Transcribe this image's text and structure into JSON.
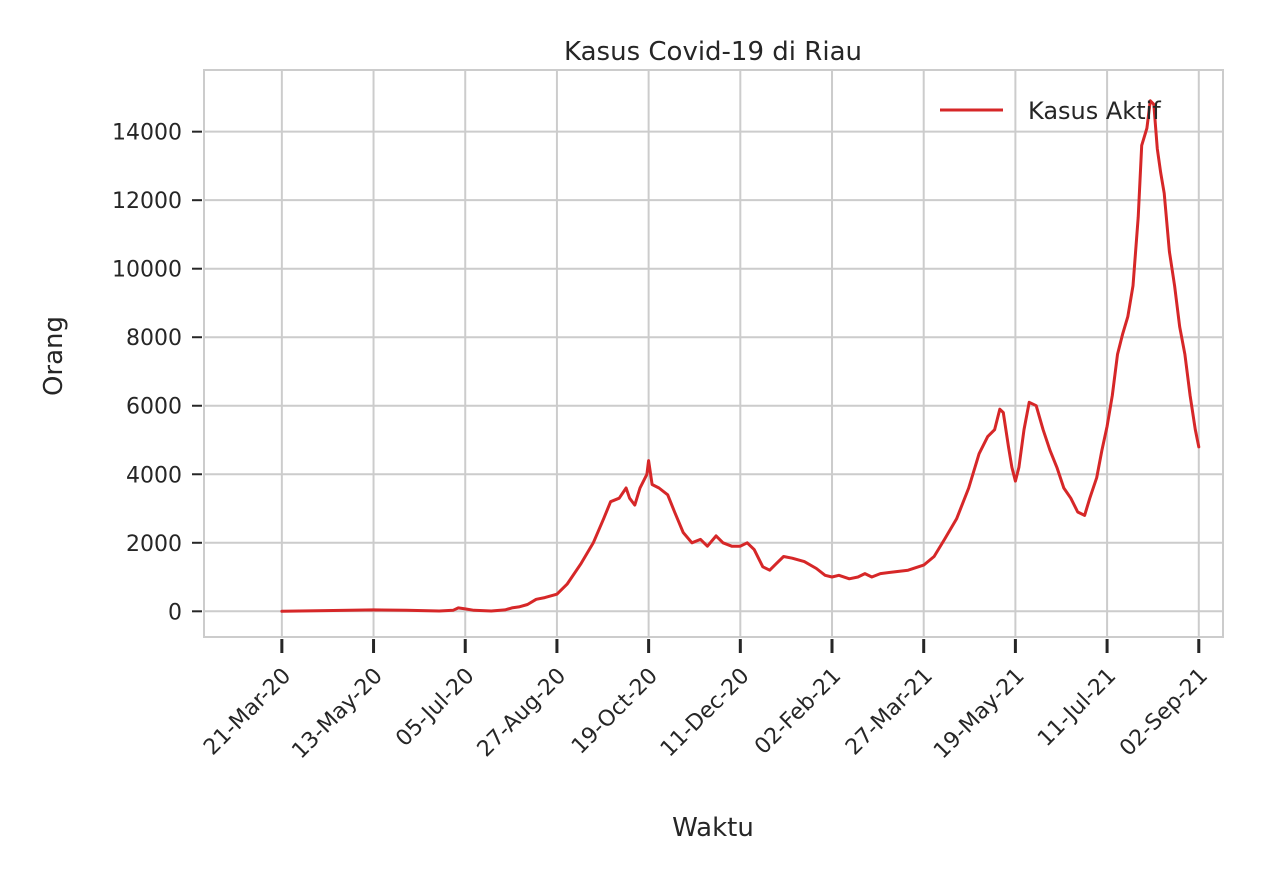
{
  "chart_data": {
    "type": "line",
    "title": "Kasus Covid-19 di Riau",
    "xlabel": "Waktu",
    "ylabel": "Orang",
    "ylim": [
      -750,
      15800
    ],
    "xlim": [
      "2020-02-05",
      "2021-09-16"
    ],
    "y_ticks": [
      0,
      2000,
      4000,
      6000,
      8000,
      10000,
      12000,
      14000
    ],
    "x_ticks": [
      {
        "date": "2020-03-21",
        "label": "21-Mar-20"
      },
      {
        "date": "2020-05-13",
        "label": "13-May-20"
      },
      {
        "date": "2020-07-05",
        "label": "05-Jul-20"
      },
      {
        "date": "2020-08-27",
        "label": "27-Aug-20"
      },
      {
        "date": "2020-10-19",
        "label": "19-Oct-20"
      },
      {
        "date": "2020-12-11",
        "label": "11-Dec-20"
      },
      {
        "date": "2021-02-02",
        "label": "02-Feb-21"
      },
      {
        "date": "2021-03-27",
        "label": "27-Mar-21"
      },
      {
        "date": "2021-05-19",
        "label": "19-May-21"
      },
      {
        "date": "2021-07-11",
        "label": "11-Jul-21"
      },
      {
        "date": "2021-09-02",
        "label": "02-Sep-21"
      }
    ],
    "grid": true,
    "legend_position": "top-right",
    "series": [
      {
        "name": "Kasus Aktif",
        "color": "#d62728",
        "points": [
          [
            "2020-03-21",
            0
          ],
          [
            "2020-04-15",
            20
          ],
          [
            "2020-05-13",
            40
          ],
          [
            "2020-06-01",
            30
          ],
          [
            "2020-06-20",
            10
          ],
          [
            "2020-06-28",
            30
          ],
          [
            "2020-07-01",
            100
          ],
          [
            "2020-07-05",
            70
          ],
          [
            "2020-07-10",
            30
          ],
          [
            "2020-07-20",
            10
          ],
          [
            "2020-07-28",
            40
          ],
          [
            "2020-08-01",
            100
          ],
          [
            "2020-08-05",
            130
          ],
          [
            "2020-08-10",
            200
          ],
          [
            "2020-08-15",
            350
          ],
          [
            "2020-08-20",
            400
          ],
          [
            "2020-08-27",
            500
          ],
          [
            "2020-09-02",
            800
          ],
          [
            "2020-09-10",
            1400
          ],
          [
            "2020-09-17",
            2000
          ],
          [
            "2020-09-23",
            2700
          ],
          [
            "2020-09-27",
            3200
          ],
          [
            "2020-10-02",
            3300
          ],
          [
            "2020-10-06",
            3600
          ],
          [
            "2020-10-08",
            3300
          ],
          [
            "2020-10-11",
            3100
          ],
          [
            "2020-10-14",
            3600
          ],
          [
            "2020-10-18",
            4000
          ],
          [
            "2020-10-19",
            4400
          ],
          [
            "2020-10-21",
            3700
          ],
          [
            "2020-10-25",
            3600
          ],
          [
            "2020-10-30",
            3400
          ],
          [
            "2020-11-03",
            2900
          ],
          [
            "2020-11-08",
            2300
          ],
          [
            "2020-11-13",
            2000
          ],
          [
            "2020-11-18",
            2100
          ],
          [
            "2020-11-22",
            1900
          ],
          [
            "2020-11-27",
            2200
          ],
          [
            "2020-12-01",
            2000
          ],
          [
            "2020-12-06",
            1900
          ],
          [
            "2020-12-11",
            1900
          ],
          [
            "2020-12-15",
            2000
          ],
          [
            "2020-12-19",
            1800
          ],
          [
            "2020-12-24",
            1300
          ],
          [
            "2020-12-28",
            1200
          ],
          [
            "2021-01-01",
            1400
          ],
          [
            "2021-01-05",
            1600
          ],
          [
            "2021-01-10",
            1550
          ],
          [
            "2021-01-17",
            1450
          ],
          [
            "2021-01-24",
            1250
          ],
          [
            "2021-01-29",
            1050
          ],
          [
            "2021-02-02",
            1000
          ],
          [
            "2021-02-06",
            1050
          ],
          [
            "2021-02-12",
            950
          ],
          [
            "2021-02-17",
            1000
          ],
          [
            "2021-02-21",
            1100
          ],
          [
            "2021-02-25",
            1000
          ],
          [
            "2021-03-02",
            1100
          ],
          [
            "2021-03-10",
            1150
          ],
          [
            "2021-03-18",
            1200
          ],
          [
            "2021-03-27",
            1350
          ],
          [
            "2021-04-02",
            1600
          ],
          [
            "2021-04-08",
            2100
          ],
          [
            "2021-04-15",
            2700
          ],
          [
            "2021-04-22",
            3600
          ],
          [
            "2021-04-28",
            4600
          ],
          [
            "2021-05-03",
            5100
          ],
          [
            "2021-05-07",
            5300
          ],
          [
            "2021-05-10",
            5900
          ],
          [
            "2021-05-12",
            5800
          ],
          [
            "2021-05-15",
            4800
          ],
          [
            "2021-05-17",
            4200
          ],
          [
            "2021-05-19",
            3800
          ],
          [
            "2021-05-21",
            4200
          ],
          [
            "2021-05-24",
            5300
          ],
          [
            "2021-05-27",
            6100
          ],
          [
            "2021-05-31",
            6000
          ],
          [
            "2021-06-04",
            5300
          ],
          [
            "2021-06-08",
            4700
          ],
          [
            "2021-06-12",
            4200
          ],
          [
            "2021-06-16",
            3600
          ],
          [
            "2021-06-20",
            3300
          ],
          [
            "2021-06-24",
            2900
          ],
          [
            "2021-06-28",
            2800
          ],
          [
            "2021-07-01",
            3300
          ],
          [
            "2021-07-05",
            3900
          ],
          [
            "2021-07-08",
            4700
          ],
          [
            "2021-07-11",
            5400
          ],
          [
            "2021-07-14",
            6300
          ],
          [
            "2021-07-17",
            7500
          ],
          [
            "2021-07-20",
            8100
          ],
          [
            "2021-07-23",
            8600
          ],
          [
            "2021-07-26",
            9500
          ],
          [
            "2021-07-29",
            11500
          ],
          [
            "2021-07-31",
            13600
          ],
          [
            "2021-08-03",
            14100
          ],
          [
            "2021-08-05",
            14900
          ],
          [
            "2021-08-07",
            14800
          ],
          [
            "2021-08-09",
            13500
          ],
          [
            "2021-08-11",
            12800
          ],
          [
            "2021-08-13",
            12200
          ],
          [
            "2021-08-16",
            10500
          ],
          [
            "2021-08-19",
            9500
          ],
          [
            "2021-08-22",
            8300
          ],
          [
            "2021-08-25",
            7500
          ],
          [
            "2021-08-28",
            6300
          ],
          [
            "2021-08-31",
            5300
          ],
          [
            "2021-09-02",
            4800
          ]
        ]
      }
    ]
  }
}
